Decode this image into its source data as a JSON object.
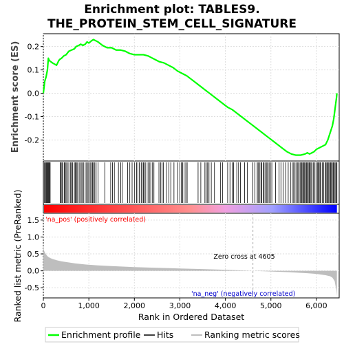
{
  "chart_data": {
    "type": "line",
    "title_line1": "Enrichment plot: TABLES9.",
    "title_line2": "THE_PROTEIN_STEM_CELL_SIGNATURE",
    "es_ylabel": "Enrichment score (ES)",
    "metric_ylabel": "Ranked list metric (PreRanked)",
    "xlabel": "Rank in Ordered Dataset",
    "xlim": [
      0,
      6500
    ],
    "es_ylim": [
      -0.29,
      0.255
    ],
    "metric_ylim": [
      -0.8,
      1.7
    ],
    "x_ticks": [
      0,
      1000,
      2000,
      3000,
      4000,
      5000,
      6000
    ],
    "x_tick_labels": [
      "0",
      "1,000",
      "2,000",
      "3,000",
      "4,000",
      "5,000",
      "6,000"
    ],
    "es_ticks": [
      0.2,
      0.1,
      0.0,
      -0.1,
      -0.2
    ],
    "es_tick_labels": [
      "0.2",
      "0.1",
      "0.0",
      "-0.1",
      "-0.2"
    ],
    "metric_ticks": [
      1.5,
      1.0,
      0.5,
      0.0,
      -0.5
    ],
    "metric_tick_labels": [
      "1.5",
      "1.0",
      "0.5",
      "0.0",
      "-0.5"
    ],
    "grid": true,
    "series": [
      {
        "name": "Enrichment profile",
        "color": "#00ff00",
        "x": [
          0,
          30,
          60,
          90,
          110,
          130,
          200,
          290,
          340,
          360,
          400,
          450,
          500,
          560,
          620,
          680,
          720,
          780,
          820,
          870,
          920,
          960,
          1000,
          1060,
          1100,
          1150,
          1200,
          1300,
          1400,
          1500,
          1600,
          1700,
          1800,
          1900,
          2000,
          2100,
          2200,
          2300,
          2350,
          2450,
          2550,
          2650,
          2750,
          2850,
          2950,
          3050,
          3150,
          3250,
          3350,
          3450,
          3550,
          3650,
          3750,
          3850,
          3950,
          4050,
          4150,
          4250,
          4350,
          4450,
          4550,
          4650,
          4750,
          4850,
          4950,
          5050,
          5150,
          5250,
          5350,
          5450,
          5550,
          5650,
          5750,
          5800,
          5850,
          5900,
          5950,
          6000,
          6050,
          6100,
          6150,
          6200,
          6250,
          6300,
          6350,
          6380,
          6400,
          6420,
          6440,
          6450
        ],
        "y": [
          0.0,
          0.05,
          0.07,
          0.1,
          0.15,
          0.14,
          0.13,
          0.12,
          0.14,
          0.145,
          0.15,
          0.16,
          0.165,
          0.18,
          0.185,
          0.19,
          0.2,
          0.205,
          0.21,
          0.205,
          0.21,
          0.22,
          0.215,
          0.225,
          0.23,
          0.225,
          0.22,
          0.205,
          0.195,
          0.195,
          0.185,
          0.185,
          0.18,
          0.17,
          0.165,
          0.165,
          0.165,
          0.16,
          0.155,
          0.145,
          0.135,
          0.13,
          0.12,
          0.11,
          0.095,
          0.085,
          0.075,
          0.06,
          0.045,
          0.03,
          0.015,
          0.0,
          -0.015,
          -0.03,
          -0.045,
          -0.06,
          -0.07,
          -0.085,
          -0.1,
          -0.115,
          -0.13,
          -0.145,
          -0.16,
          -0.175,
          -0.19,
          -0.205,
          -0.22,
          -0.235,
          -0.25,
          -0.26,
          -0.265,
          -0.265,
          -0.26,
          -0.255,
          -0.26,
          -0.255,
          -0.25,
          -0.24,
          -0.235,
          -0.23,
          -0.225,
          -0.22,
          -0.2,
          -0.17,
          -0.14,
          -0.11,
          -0.08,
          -0.05,
          -0.02,
          0.0
        ]
      }
    ],
    "hits": [
      20,
      45,
      60,
      75,
      90,
      105,
      120,
      135,
      150,
      370,
      390,
      410,
      430,
      460,
      480,
      500,
      530,
      560,
      600,
      620,
      640,
      680,
      700,
      720,
      740,
      760,
      800,
      830,
      850,
      880,
      920,
      950,
      980,
      1000,
      1030,
      1060,
      1080,
      1100,
      1130,
      1160,
      1200,
      1350,
      1480,
      1520,
      1560,
      1650,
      1700,
      1730,
      1850,
      1900,
      1950,
      2000,
      2050,
      2080,
      2110,
      2150,
      2170,
      2200,
      2220,
      2250,
      2300,
      2330,
      2360,
      2400,
      2430,
      2540,
      2580,
      2610,
      2640,
      2700,
      2760,
      2800,
      2870,
      2950,
      3000,
      3030,
      3060,
      3090,
      3130,
      3160,
      3400,
      3460,
      3550,
      3580,
      3610,
      3640,
      3690,
      3760,
      3890,
      3940,
      4050,
      4100,
      4150,
      4180,
      4250,
      4290,
      4330,
      4420,
      4480,
      4600,
      4650,
      4700,
      4720,
      4750,
      4780,
      4800,
      4830,
      4850,
      4880,
      4910,
      4930,
      4960,
      4990,
      5020,
      5100,
      5180,
      5220,
      5270,
      5330,
      5380,
      5430,
      5470,
      5500,
      5530,
      5560,
      5590,
      5610,
      5640,
      5660,
      5680,
      5700,
      5720,
      5740,
      5760,
      5780,
      5800,
      5820,
      5840,
      5860,
      5880,
      5900,
      5930,
      5960,
      5990,
      6020,
      6040,
      6060,
      6080,
      6100,
      6130,
      6160,
      6190,
      6210,
      6230,
      6250,
      6270,
      6290,
      6310,
      6330,
      6350,
      6370,
      6390,
      6410,
      6430,
      6450
    ],
    "hit_color": "#000000",
    "metric": {
      "x": [
        0,
        10,
        30,
        60,
        100,
        150,
        200,
        300,
        400,
        500,
        700,
        900,
        1200,
        1500,
        2000,
        2500,
        3000,
        3500,
        4000,
        4400,
        4605,
        4800,
        5000,
        5400,
        5800,
        6000,
        6200,
        6300,
        6350,
        6400,
        6420,
        6440,
        6450
      ],
      "y": [
        0.8,
        0.62,
        0.55,
        0.48,
        0.42,
        0.38,
        0.35,
        0.31,
        0.28,
        0.26,
        0.22,
        0.19,
        0.16,
        0.14,
        0.11,
        0.09,
        0.07,
        0.05,
        0.03,
        0.01,
        0.0,
        -0.01,
        -0.02,
        -0.04,
        -0.07,
        -0.09,
        -0.13,
        -0.16,
        -0.2,
        -0.3,
        -0.45,
        -0.6,
        -0.75
      ],
      "fill_color": "#bebebe"
    },
    "colorbar_colors": [
      "#ff0000",
      "#ff9090",
      "#f0a0e0",
      "#a0a0ff",
      "#0000ff"
    ],
    "zero_cross_label": "Zero cross at 4605",
    "zero_cross_x": 4605,
    "pos_label": "'na_pos' (positively correlated)",
    "pos_color": "#ff0000",
    "neg_label": "'na_neg' (negatively correlated)",
    "neg_color": "#0000cc",
    "legend": [
      {
        "label": "Enrichment profile",
        "color": "#00ff00"
      },
      {
        "label": "Hits",
        "color": "#000000"
      },
      {
        "label": "Ranking metric scores",
        "color": "#bebebe"
      }
    ]
  }
}
